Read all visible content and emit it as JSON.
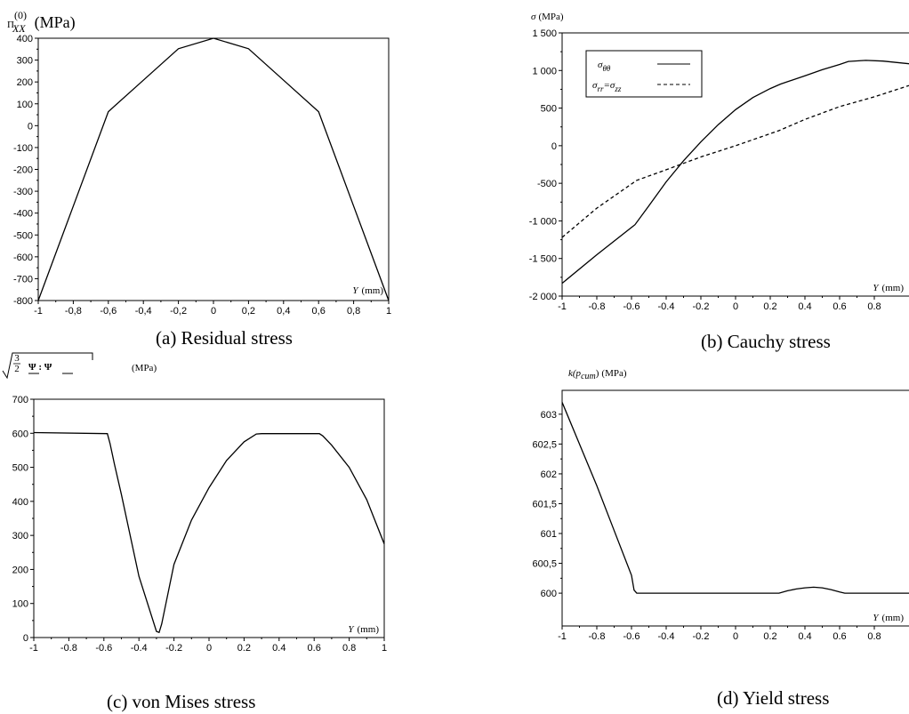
{
  "charts": [
    {
      "type": "line",
      "caption": "(a) Residual stress",
      "y_label": "Π",
      "y_label_sub": "XX",
      "y_label_sup": "(0)",
      "y_label_unit": "(MPa)",
      "x_label_var": "Y",
      "x_label_unit": "(mm)",
      "xlim": [
        -1,
        1
      ],
      "ylim": [
        -800,
        400
      ],
      "xticks": [
        -1,
        -0.8,
        -0.6,
        -0.4,
        -0.2,
        0,
        0.2,
        0.4,
        0.6,
        0.8,
        1
      ],
      "xtick_labels": [
        "-1",
        "-0,8",
        "-0,6",
        "-0,4",
        "-0,2",
        "0",
        "0,2",
        "0,4",
        "0,6",
        "0,8",
        "1"
      ],
      "yticks": [
        400,
        300,
        200,
        100,
        0,
        -100,
        -200,
        -300,
        -400,
        -500,
        -600,
        -700,
        -800
      ],
      "ytick_labels": [
        "400",
        "300",
        "200",
        "100",
        "0",
        "-100",
        "-200",
        "-300",
        "-400",
        "-500",
        "-600",
        "-700",
        "-800"
      ],
      "series": [
        {
          "dash": "",
          "x": [
            -1,
            -0.8,
            -0.6,
            -0.4,
            -0.2,
            0,
            0.2,
            0.4,
            0.6,
            0.8,
            1
          ],
          "y": [
            -800,
            -368,
            64,
            208,
            352,
            400,
            352,
            208,
            64,
            -368,
            -800
          ]
        }
      ]
    },
    {
      "type": "line",
      "caption": "(b) Cauchy stress",
      "y_label": "σ",
      "y_label_unit": "(MPa)",
      "x_label_var": "Y",
      "x_label_unit": "(mm)",
      "xlim": [
        -1,
        1
      ],
      "ylim": [
        -2000,
        1500
      ],
      "xticks": [
        -1,
        -0.8,
        -0.6,
        -0.4,
        -0.2,
        0,
        0.2,
        0.4,
        0.6,
        0.8
      ],
      "xtick_labels": [
        "-1",
        "-0.8",
        "-0.6",
        "-0.4",
        "-0.2",
        "0",
        "0.2",
        "0.4",
        "0.6",
        "0.8"
      ],
      "yticks": [
        1500,
        1000,
        500,
        0,
        -500,
        -1000,
        -1500,
        -2000
      ],
      "ytick_labels": [
        "1 500",
        "1 000",
        "500",
        "0",
        "-500",
        "-1 000",
        "-1 500",
        "-2 000"
      ],
      "legend": {
        "entries": [
          {
            "text": "σ",
            "sub": "θθ",
            "dash": ""
          },
          {
            "text": "σ",
            "sub": "rr",
            "text2": "=σ",
            "sub2": "zz",
            "dash": "4 3"
          }
        ]
      },
      "series": [
        {
          "dash": "",
          "x": [
            -1,
            -0.8,
            -0.58,
            -0.5,
            -0.4,
            -0.3,
            -0.2,
            -0.1,
            0,
            0.1,
            0.2,
            0.26,
            0.4,
            0.5,
            0.6,
            0.65,
            0.75,
            0.85,
            1
          ],
          "y": [
            -1830,
            -1450,
            -1050,
            -800,
            -480,
            -200,
            50,
            280,
            480,
            640,
            760,
            820,
            930,
            1010,
            1080,
            1120,
            1135,
            1125,
            1090
          ]
        },
        {
          "dash": "4 3",
          "x": [
            -1,
            -0.8,
            -0.57,
            -0.4,
            -0.2,
            0,
            0.25,
            0.4,
            0.6,
            0.8,
            1
          ],
          "y": [
            -1220,
            -830,
            -460,
            -320,
            -150,
            0,
            200,
            350,
            520,
            650,
            800
          ]
        }
      ]
    },
    {
      "type": "line",
      "caption": "(c) von Mises stress",
      "y_label_frac_num": "3",
      "y_label_frac_den": "2",
      "y_label_psi": "Ψ : Ψ",
      "y_label_unit": "(MPa)",
      "x_label_var": "Y",
      "x_label_unit": "(mm)",
      "xlim": [
        -1,
        1
      ],
      "ylim": [
        0,
        700
      ],
      "xticks": [
        -1,
        -0.8,
        -0.6,
        -0.4,
        -0.2,
        0,
        0.2,
        0.4,
        0.6,
        0.8,
        1
      ],
      "xtick_labels": [
        "-1",
        "-0.8",
        "-0.6",
        "-0.4",
        "-0.2",
        "0",
        "0.2",
        "0.4",
        "0.6",
        "0.8",
        "1"
      ],
      "yticks": [
        700,
        600,
        500,
        400,
        300,
        200,
        100,
        0
      ],
      "ytick_labels": [
        "700",
        "600",
        "500",
        "400",
        "300",
        "200",
        "100",
        "0"
      ],
      "series": [
        {
          "dash": "",
          "x": [
            -1,
            -0.58,
            -0.565,
            -0.54,
            -0.5,
            -0.4,
            -0.3,
            -0.285,
            -0.27,
            -0.2,
            -0.1,
            0,
            0.1,
            0.2,
            0.27,
            0.3,
            0.63,
            0.65,
            0.7,
            0.8,
            0.9,
            1
          ],
          "y": [
            602,
            599,
            570,
            510,
            420,
            180,
            18,
            15,
            40,
            215,
            345,
            440,
            520,
            575,
            598,
            599,
            599,
            592,
            565,
            500,
            405,
            275
          ]
        }
      ]
    },
    {
      "type": "line",
      "caption": "(d) Yield stress",
      "y_label": "k",
      "y_label_paren_open": "(p",
      "y_label_sub": "cum",
      "y_label_paren_close": ")",
      "y_label_unit": "(MPa)",
      "x_label_var": "Y",
      "x_label_unit": "(mm)",
      "xlim": [
        -1,
        1
      ],
      "ylim": [
        599.45,
        603.4
      ],
      "xticks": [
        -1,
        -0.8,
        -0.6,
        -0.4,
        -0.2,
        0,
        0.2,
        0.4,
        0.6,
        0.8
      ],
      "xtick_labels": [
        "-1",
        "-0.8",
        "-0.6",
        "-0.4",
        "-0.2",
        "0",
        "0.2",
        "0.4",
        "0.6",
        "0.8"
      ],
      "yticks": [
        603,
        602.5,
        602,
        601.5,
        601,
        600.5,
        600
      ],
      "ytick_labels": [
        "603",
        "602,5",
        "602",
        "601,5",
        "601",
        "600,5",
        "600"
      ],
      "series": [
        {
          "dash": "",
          "x": [
            -1,
            -0.9,
            -0.8,
            -0.7,
            -0.6,
            -0.585,
            -0.57,
            -0.55,
            0.25,
            0.3,
            0.35,
            0.4,
            0.45,
            0.5,
            0.55,
            0.6,
            0.63,
            0.7,
            1
          ],
          "y": [
            603.2,
            602.5,
            601.8,
            601.05,
            600.3,
            600.05,
            600,
            600,
            600,
            600.04,
            600.07,
            600.09,
            600.1,
            600.09,
            600.06,
            600.02,
            600,
            600,
            600
          ]
        }
      ]
    }
  ]
}
